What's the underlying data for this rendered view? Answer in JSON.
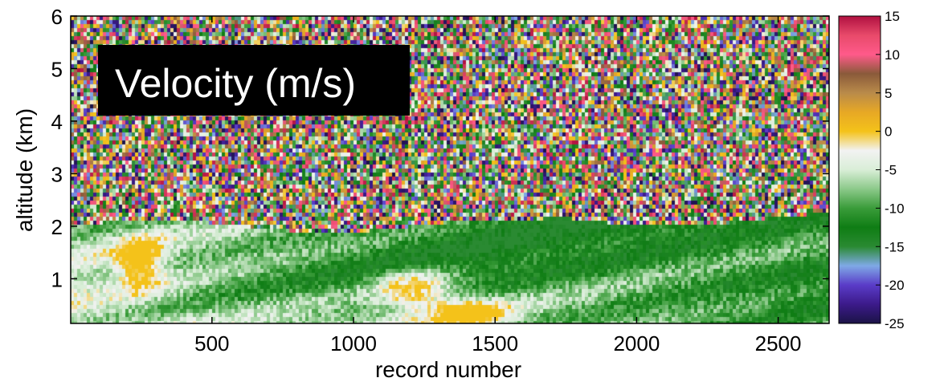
{
  "chart_data": {
    "type": "heatmap",
    "title": "Velocity (m/s)",
    "xlabel": "record number",
    "ylabel": "altitude (km)",
    "xlim": [
      1,
      2680
    ],
    "ylim": [
      0.15,
      6
    ],
    "x_ticks": [
      500,
      1000,
      1500,
      2000,
      2500
    ],
    "y_ticks": [
      1,
      2,
      3,
      4,
      5,
      6
    ],
    "colorbar": {
      "min": -25,
      "max": 15,
      "ticks": [
        15,
        10,
        5,
        0,
        -5,
        -10,
        -15,
        -20,
        -25
      ],
      "colors": [
        "#1b1346",
        "#3c1a8a",
        "#5a3cc8",
        "#7fa9e6",
        "#2a8a32",
        "#0f7d14",
        "#3a9c3a",
        "#8cc98a",
        "#d9eed7",
        "#f2f2f2",
        "#f4c21a",
        "#e7a825",
        "#b98a4a",
        "#8a5a3a",
        "#ff5a8a",
        "#e84a6a",
        "#b01040"
      ]
    },
    "regions": [
      {
        "altitude_range": [
          2.0,
          6.0
        ],
        "pattern": "noise",
        "description_values": "random across full colour range"
      },
      {
        "altitude_range": [
          0.15,
          2.0
        ],
        "pattern": "signal",
        "dominant_velocity": -14,
        "velocity_range": [
          -15,
          0
        ]
      }
    ]
  }
}
